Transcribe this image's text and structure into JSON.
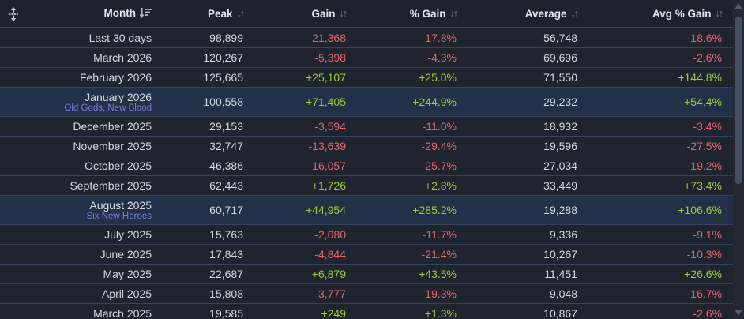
{
  "table": {
    "columns": [
      {
        "label": "Month",
        "sort": "active-desc"
      },
      {
        "label": "Peak",
        "sort": "none"
      },
      {
        "label": "Gain",
        "sort": "none"
      },
      {
        "label": "% Gain",
        "sort": "none"
      },
      {
        "label": "Average",
        "sort": "none"
      },
      {
        "label": "Avg % Gain",
        "sort": "none"
      }
    ],
    "rows": [
      {
        "month": "Last 30 days",
        "sub_label": "",
        "highlight": false,
        "peak": "98,899",
        "gain": "-21,368",
        "gain_pct": "-17.8%",
        "average": "56,748",
        "avg_gain_pct": "-18.6%"
      },
      {
        "month": "March 2026",
        "sub_label": "",
        "highlight": false,
        "peak": "120,267",
        "gain": "-5,398",
        "gain_pct": "-4.3%",
        "average": "69,696",
        "avg_gain_pct": "-2.6%"
      },
      {
        "month": "February 2026",
        "sub_label": "",
        "highlight": false,
        "peak": "125,665",
        "gain": "+25,107",
        "gain_pct": "+25.0%",
        "average": "71,550",
        "avg_gain_pct": "+144.8%"
      },
      {
        "month": "January 2026",
        "sub_label": "Old Gods, New Blood",
        "highlight": true,
        "peak": "100,558",
        "gain": "+71,405",
        "gain_pct": "+244.9%",
        "average": "29,232",
        "avg_gain_pct": "+54.4%"
      },
      {
        "month": "December 2025",
        "sub_label": "",
        "highlight": false,
        "peak": "29,153",
        "gain": "-3,594",
        "gain_pct": "-11.0%",
        "average": "18,932",
        "avg_gain_pct": "-3.4%"
      },
      {
        "month": "November 2025",
        "sub_label": "",
        "highlight": false,
        "peak": "32,747",
        "gain": "-13,639",
        "gain_pct": "-29.4%",
        "average": "19,596",
        "avg_gain_pct": "-27.5%"
      },
      {
        "month": "October 2025",
        "sub_label": "",
        "highlight": false,
        "peak": "46,386",
        "gain": "-16,057",
        "gain_pct": "-25.7%",
        "average": "27,034",
        "avg_gain_pct": "-19.2%"
      },
      {
        "month": "September 2025",
        "sub_label": "",
        "highlight": false,
        "peak": "62,443",
        "gain": "+1,726",
        "gain_pct": "+2.8%",
        "average": "33,449",
        "avg_gain_pct": "+73.4%"
      },
      {
        "month": "August 2025",
        "sub_label": "Six New Heroes",
        "highlight": true,
        "peak": "60,717",
        "gain": "+44,954",
        "gain_pct": "+285.2%",
        "average": "19,288",
        "avg_gain_pct": "+106.6%"
      },
      {
        "month": "July 2025",
        "sub_label": "",
        "highlight": false,
        "peak": "15,763",
        "gain": "-2,080",
        "gain_pct": "-11.7%",
        "average": "9,336",
        "avg_gain_pct": "-9.1%"
      },
      {
        "month": "June 2025",
        "sub_label": "",
        "highlight": false,
        "peak": "17,843",
        "gain": "-4,844",
        "gain_pct": "-21.4%",
        "average": "10,267",
        "avg_gain_pct": "-10.3%"
      },
      {
        "month": "May 2025",
        "sub_label": "",
        "highlight": false,
        "peak": "22,687",
        "gain": "+6,879",
        "gain_pct": "+43.5%",
        "average": "11,451",
        "avg_gain_pct": "+26.6%"
      },
      {
        "month": "April 2025",
        "sub_label": "",
        "highlight": false,
        "peak": "15,808",
        "gain": "-3,777",
        "gain_pct": "-19.3%",
        "average": "9,048",
        "avg_gain_pct": "-16.7%"
      },
      {
        "month": "March 2025",
        "sub_label": "",
        "highlight": false,
        "peak": "19,585",
        "gain": "+249",
        "gain_pct": "+1.3%",
        "average": "10,867",
        "avg_gain_pct": "-2.6%"
      }
    ]
  },
  "icons": {
    "sort_inactive": "↓↑",
    "drag_handle": "move-rows-handle",
    "sort_active": "sort-descending"
  },
  "colors": {
    "negative": "#e2646d",
    "positive": "#9ace34",
    "sub_label_link": "#7680d8",
    "row_highlight": "#233148",
    "row_background": "#1f242e",
    "header_background": "#1d232d"
  }
}
